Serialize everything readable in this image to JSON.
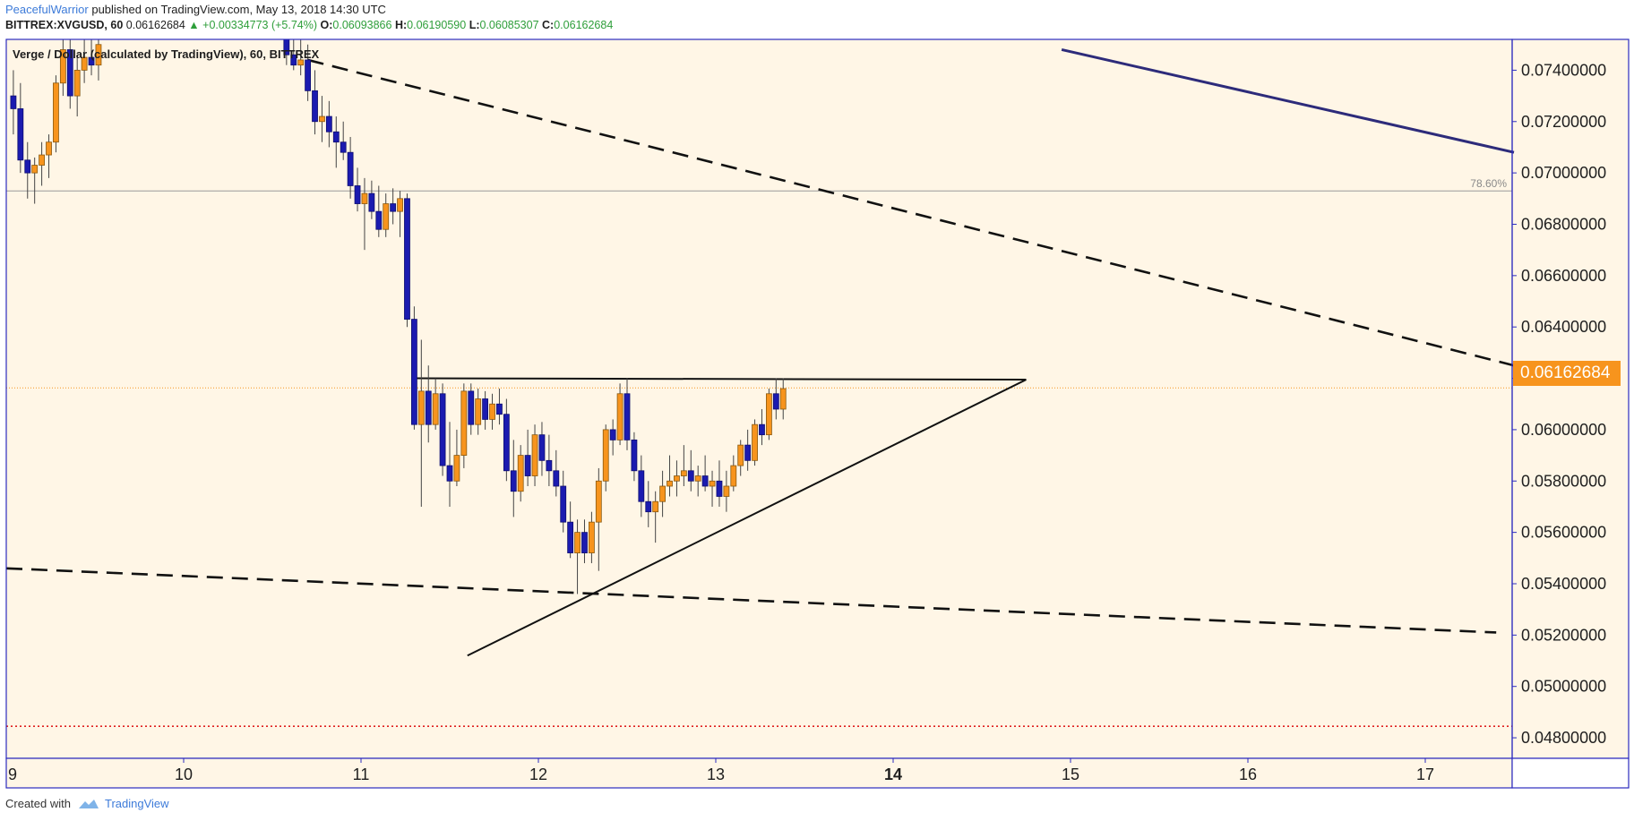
{
  "header": {
    "author": "PeacefulWarrior",
    "published": "published on TradingView.com, May 13, 2018 14:30 UTC",
    "symbol_line": "BITTREX:XVGUSD, 60",
    "last": "0.06162684",
    "change": "+0.00334773 (+5.74%)",
    "o_label": "O:",
    "o": "0.06093866",
    "h_label": "H:",
    "h": "0.06190590",
    "l_label": "L:",
    "l": "0.06085307",
    "c_label": "C:",
    "c": "0.06162684"
  },
  "footer": {
    "created": "Created with",
    "brand": "TradingView"
  },
  "current_price": "0.06162684",
  "colors": {
    "background": "#fff6e6",
    "up_candle": "#f7941d",
    "down_candle": "#1b1bb0",
    "frame": "#2b2bbf",
    "pill": "#f7941d",
    "red_line": "#e02020",
    "solid_trend": "#2d2b7a"
  },
  "chart_data": {
    "type": "candlestick",
    "title": "Verge / Dollar (calculated by TradingView), 60, BITTREX",
    "ylim": [
      0.0472,
      0.0752
    ],
    "y_ticks": [
      "0.07400000",
      "0.07200000",
      "0.07000000",
      "0.06800000",
      "0.06600000",
      "0.06400000",
      "0.06200000",
      "0.06000000",
      "0.05800000",
      "0.05600000",
      "0.05400000",
      "0.05200000",
      "0.05000000",
      "0.04800000"
    ],
    "y_tick_values": [
      0.074,
      0.072,
      0.07,
      0.068,
      0.066,
      0.064,
      0.062,
      0.06,
      0.058,
      0.056,
      0.054,
      0.052,
      0.05,
      0.048
    ],
    "x_ticks": [
      "9",
      "10",
      "11",
      "12",
      "13",
      "14",
      "15",
      "16",
      "17"
    ],
    "x_tick_values": [
      9,
      10,
      11,
      12,
      13,
      14,
      15,
      16,
      17
    ],
    "bold_x_tick": "14",
    "xlim": [
      9.0,
      17.5
    ],
    "fib_level": {
      "label": "78.60%",
      "y": 0.0693
    },
    "red_dotted_level": 0.04845,
    "current_price_line": 0.06162684,
    "trendlines": [
      {
        "style": "dashed",
        "from": [
          10.7,
          0.0744
        ],
        "to": [
          17.5,
          0.0625
        ]
      },
      {
        "style": "dashed",
        "from": [
          9.0,
          0.0546
        ],
        "to": [
          17.4,
          0.0521
        ]
      },
      {
        "style": "solid_thick",
        "from": [
          14.95,
          0.0748
        ],
        "to": [
          17.5,
          0.0708
        ]
      },
      {
        "style": "solid",
        "from": [
          11.3,
          0.062
        ],
        "to": [
          14.75,
          0.06195
        ]
      },
      {
        "style": "solid",
        "from": [
          11.6,
          0.0512
        ],
        "to": [
          14.75,
          0.06195
        ]
      }
    ],
    "candles": [
      [
        9.04,
        0.073,
        0.074,
        0.0715,
        0.0725
      ],
      [
        9.08,
        0.0725,
        0.0735,
        0.07,
        0.0705
      ],
      [
        9.12,
        0.0705,
        0.0712,
        0.069,
        0.07
      ],
      [
        9.16,
        0.07,
        0.0706,
        0.0688,
        0.0703
      ],
      [
        9.2,
        0.0703,
        0.0712,
        0.0695,
        0.0707
      ],
      [
        9.24,
        0.0707,
        0.0715,
        0.0698,
        0.0712
      ],
      [
        9.28,
        0.0712,
        0.0738,
        0.0708,
        0.0735
      ],
      [
        9.32,
        0.0735,
        0.0752,
        0.073,
        0.0748
      ],
      [
        9.36,
        0.0748,
        0.0752,
        0.0725,
        0.073
      ],
      [
        9.4,
        0.073,
        0.0745,
        0.0722,
        0.074
      ],
      [
        9.44,
        0.074,
        0.0752,
        0.0735,
        0.0745
      ],
      [
        9.48,
        0.0745,
        0.0752,
        0.0738,
        0.0742
      ],
      [
        9.52,
        0.0742,
        0.0752,
        0.0736,
        0.075
      ],
      [
        10.58,
        0.0752,
        0.0752,
        0.0742,
        0.0746
      ],
      [
        10.62,
        0.0746,
        0.0752,
        0.074,
        0.0742
      ],
      [
        10.66,
        0.0742,
        0.0752,
        0.0738,
        0.0744
      ],
      [
        10.7,
        0.0744,
        0.075,
        0.0728,
        0.0732
      ],
      [
        10.74,
        0.0732,
        0.074,
        0.0715,
        0.072
      ],
      [
        10.78,
        0.072,
        0.073,
        0.0712,
        0.0722
      ],
      [
        10.82,
        0.0722,
        0.0728,
        0.071,
        0.0716
      ],
      [
        10.86,
        0.0716,
        0.0722,
        0.0702,
        0.0712
      ],
      [
        10.9,
        0.0712,
        0.072,
        0.0705,
        0.0708
      ],
      [
        10.94,
        0.0708,
        0.0714,
        0.069,
        0.0695
      ],
      [
        10.98,
        0.0695,
        0.0702,
        0.0685,
        0.0688
      ],
      [
        11.02,
        0.0688,
        0.0698,
        0.067,
        0.0692
      ],
      [
        11.06,
        0.0692,
        0.0697,
        0.0682,
        0.0685
      ],
      [
        11.1,
        0.0685,
        0.0695,
        0.0675,
        0.0678
      ],
      [
        11.14,
        0.0678,
        0.0692,
        0.0675,
        0.0688
      ],
      [
        11.18,
        0.0688,
        0.0694,
        0.068,
        0.0685
      ],
      [
        11.22,
        0.0685,
        0.0693,
        0.0675,
        0.069
      ],
      [
        11.26,
        0.069,
        0.0692,
        0.064,
        0.0643
      ],
      [
        11.3,
        0.0643,
        0.0648,
        0.06,
        0.0602
      ],
      [
        11.34,
        0.0602,
        0.0635,
        0.057,
        0.0615
      ],
      [
        11.38,
        0.0615,
        0.0625,
        0.0595,
        0.0602
      ],
      [
        11.42,
        0.0602,
        0.062,
        0.06,
        0.0614
      ],
      [
        11.46,
        0.0614,
        0.0618,
        0.0582,
        0.0586
      ],
      [
        11.5,
        0.0586,
        0.0603,
        0.057,
        0.058
      ],
      [
        11.54,
        0.058,
        0.06,
        0.0578,
        0.059
      ],
      [
        11.58,
        0.059,
        0.0618,
        0.0585,
        0.0615
      ],
      [
        11.62,
        0.0615,
        0.0618,
        0.0598,
        0.0602
      ],
      [
        11.66,
        0.0602,
        0.0616,
        0.0598,
        0.0612
      ],
      [
        11.7,
        0.0612,
        0.0615,
        0.06,
        0.0604
      ],
      [
        11.74,
        0.0604,
        0.0614,
        0.06,
        0.061
      ],
      [
        11.78,
        0.061,
        0.0616,
        0.0602,
        0.0606
      ],
      [
        11.82,
        0.0606,
        0.0612,
        0.058,
        0.0584
      ],
      [
        11.86,
        0.0584,
        0.0596,
        0.0566,
        0.0576
      ],
      [
        11.9,
        0.0576,
        0.0594,
        0.0572,
        0.059
      ],
      [
        11.94,
        0.059,
        0.06,
        0.0578,
        0.0582
      ],
      [
        11.98,
        0.0582,
        0.0602,
        0.0578,
        0.0598
      ],
      [
        12.02,
        0.0598,
        0.0603,
        0.0582,
        0.0588
      ],
      [
        12.06,
        0.0588,
        0.0598,
        0.0578,
        0.0584
      ],
      [
        12.1,
        0.0584,
        0.0592,
        0.0574,
        0.0578
      ],
      [
        12.14,
        0.0578,
        0.0584,
        0.056,
        0.0564
      ],
      [
        12.18,
        0.0564,
        0.0572,
        0.055,
        0.0552
      ],
      [
        12.22,
        0.0552,
        0.0565,
        0.0536,
        0.056
      ],
      [
        12.26,
        0.056,
        0.0565,
        0.0548,
        0.0552
      ],
      [
        12.3,
        0.0552,
        0.0568,
        0.0548,
        0.0564
      ],
      [
        12.34,
        0.0564,
        0.0585,
        0.0545,
        0.058
      ],
      [
        12.38,
        0.058,
        0.0602,
        0.0576,
        0.06
      ],
      [
        12.42,
        0.06,
        0.0604,
        0.059,
        0.0596
      ],
      [
        12.46,
        0.0596,
        0.0618,
        0.0594,
        0.0614
      ],
      [
        12.5,
        0.0614,
        0.062,
        0.0592,
        0.0596
      ],
      [
        12.54,
        0.0596,
        0.0599,
        0.058,
        0.0584
      ],
      [
        12.58,
        0.0584,
        0.059,
        0.0566,
        0.0572
      ],
      [
        12.62,
        0.0572,
        0.058,
        0.0562,
        0.0568
      ],
      [
        12.66,
        0.0568,
        0.0576,
        0.0556,
        0.0572
      ],
      [
        12.7,
        0.0572,
        0.0584,
        0.0566,
        0.0578
      ],
      [
        12.74,
        0.0578,
        0.059,
        0.0574,
        0.058
      ],
      [
        12.78,
        0.058,
        0.0588,
        0.0574,
        0.0582
      ],
      [
        12.82,
        0.0582,
        0.0594,
        0.0578,
        0.0584
      ],
      [
        12.86,
        0.0584,
        0.0592,
        0.0576,
        0.058
      ],
      [
        12.9,
        0.058,
        0.0586,
        0.0574,
        0.0582
      ],
      [
        12.94,
        0.0582,
        0.059,
        0.0576,
        0.0578
      ],
      [
        12.98,
        0.0578,
        0.0584,
        0.057,
        0.058
      ],
      [
        13.02,
        0.058,
        0.0588,
        0.057,
        0.0574
      ],
      [
        13.06,
        0.0574,
        0.0584,
        0.0568,
        0.0578
      ],
      [
        13.1,
        0.0578,
        0.059,
        0.0576,
        0.0586
      ],
      [
        13.14,
        0.0586,
        0.0596,
        0.0582,
        0.0594
      ],
      [
        13.18,
        0.0594,
        0.06,
        0.0584,
        0.0588
      ],
      [
        13.22,
        0.0588,
        0.0604,
        0.0586,
        0.0602
      ],
      [
        13.26,
        0.0602,
        0.0608,
        0.0594,
        0.0598
      ],
      [
        13.3,
        0.0598,
        0.0616,
        0.0596,
        0.0614
      ],
      [
        13.34,
        0.0614,
        0.062,
        0.0604,
        0.0608
      ],
      [
        13.38,
        0.0608,
        0.062,
        0.0604,
        0.0616
      ]
    ]
  }
}
